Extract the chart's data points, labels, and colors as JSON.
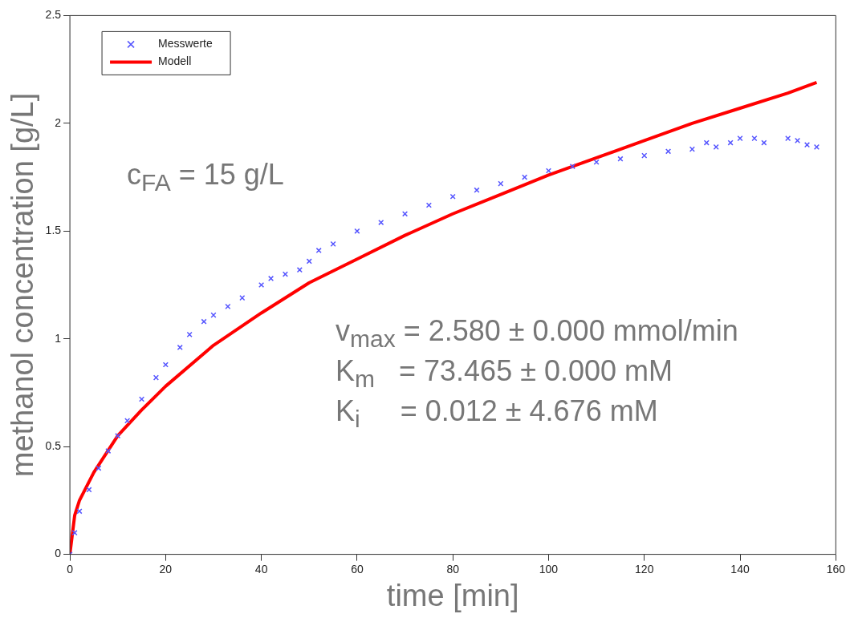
{
  "chart_data": {
    "type": "line",
    "xlabel": "time [min]",
    "ylabel": "methanol concentration [g/L]",
    "xlim": [
      0,
      160
    ],
    "ylim": [
      0,
      2.5
    ],
    "xticks": [
      0,
      20,
      40,
      60,
      80,
      100,
      120,
      140,
      160
    ],
    "yticks": [
      0,
      0.5,
      1,
      1.5,
      2,
      2.5
    ],
    "grid": false,
    "legend": "top left",
    "annotations": [
      "c$_{FA}$ = 15 g/L",
      "v$_{max}$ = 2.580 ± 0.000 mmol/min",
      "K$_{m}$   = 73.465 ± 0.000 mM",
      "K$_{i}$     = 0.012 ± 4.676 mM"
    ],
    "series": [
      {
        "name": "Messwerte",
        "type": "scatter",
        "marker": "cross",
        "color": "#5555ff",
        "x": [
          0,
          1,
          2,
          4,
          6,
          8,
          10,
          12,
          15,
          18,
          20,
          23,
          25,
          28,
          30,
          33,
          36,
          40,
          42,
          45,
          48,
          50,
          52,
          55,
          60,
          65,
          70,
          75,
          80,
          85,
          90,
          95,
          100,
          105,
          110,
          115,
          120,
          125,
          130,
          133,
          135,
          138,
          140,
          143,
          145,
          150,
          152,
          154,
          156
        ],
        "values": [
          0,
          0.1,
          0.2,
          0.3,
          0.4,
          0.48,
          0.55,
          0.62,
          0.72,
          0.82,
          0.88,
          0.96,
          1.02,
          1.08,
          1.11,
          1.15,
          1.19,
          1.25,
          1.28,
          1.3,
          1.32,
          1.36,
          1.41,
          1.44,
          1.5,
          1.54,
          1.58,
          1.62,
          1.66,
          1.69,
          1.72,
          1.75,
          1.78,
          1.8,
          1.82,
          1.835,
          1.85,
          1.87,
          1.88,
          1.91,
          1.89,
          1.91,
          1.93,
          1.93,
          1.91,
          1.93,
          1.92,
          1.9,
          1.89
        ]
      },
      {
        "name": "Modell",
        "type": "line",
        "marker": "none",
        "line_style": "solid",
        "color": "#ff0000",
        "x": [
          0,
          1,
          2,
          5,
          10,
          15,
          20,
          30,
          40,
          50,
          60,
          70,
          80,
          90,
          100,
          110,
          120,
          130,
          140,
          150,
          156
        ],
        "values": [
          0,
          0.18,
          0.25,
          0.38,
          0.55,
          0.67,
          0.78,
          0.97,
          1.12,
          1.26,
          1.37,
          1.48,
          1.58,
          1.67,
          1.76,
          1.84,
          1.92,
          2.0,
          2.07,
          2.14,
          2.19
        ]
      }
    ]
  }
}
